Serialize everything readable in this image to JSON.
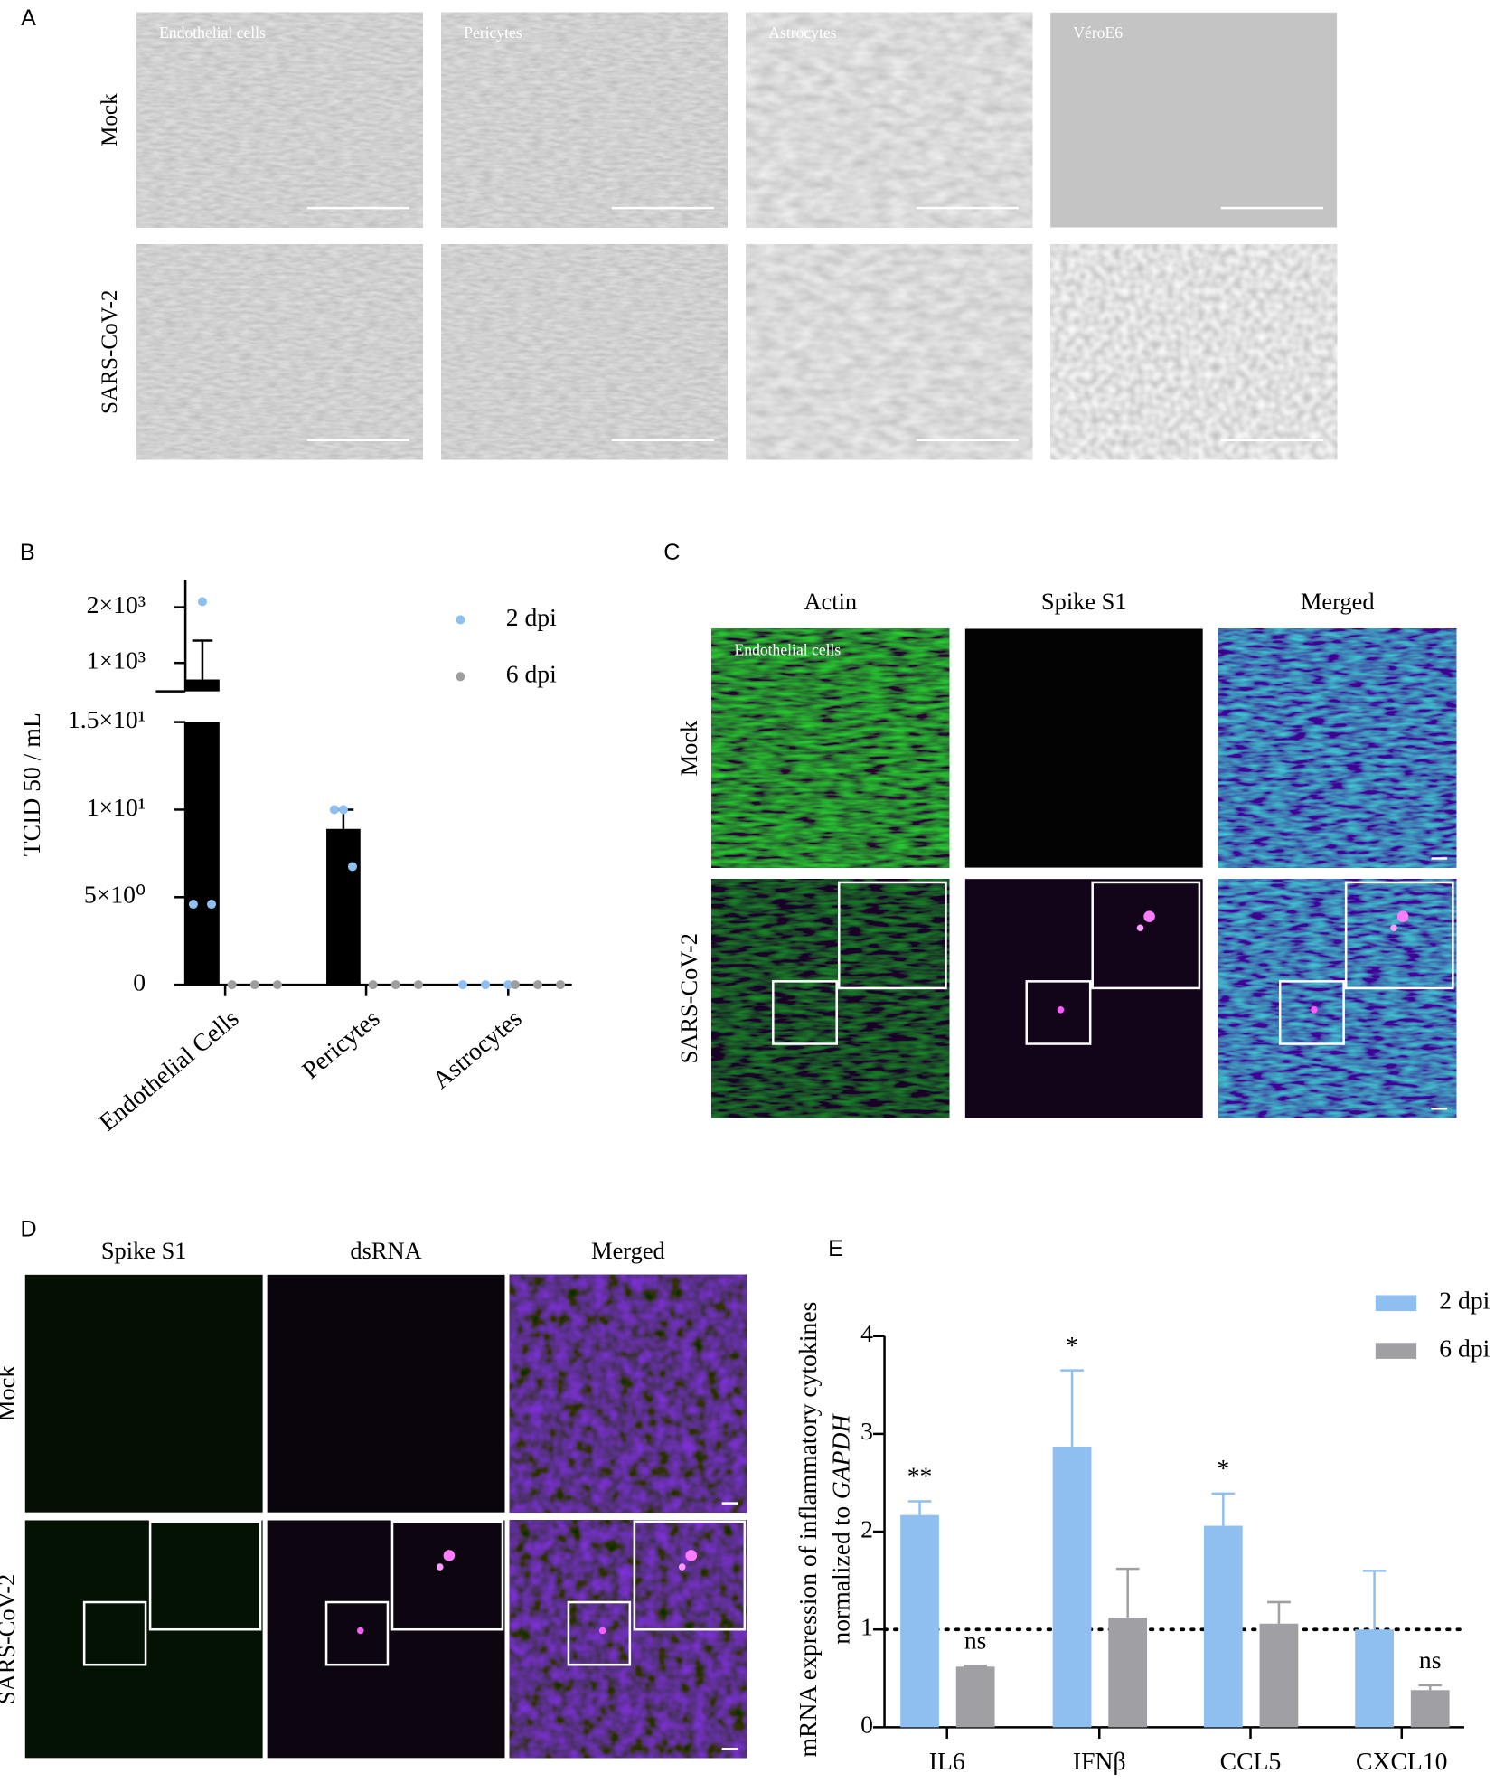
{
  "figure": {
    "panel_labels": [
      "A",
      "B",
      "C",
      "D",
      "E"
    ],
    "panel_a": {
      "rows": [
        "Mock",
        "SARS-CoV-2"
      ],
      "columns": [
        "Endothelial cells",
        "Pericytes",
        "Astrocytes",
        "VéroE6"
      ]
    },
    "panel_c": {
      "columns": [
        "Actin",
        "Spike S1",
        "Merged"
      ],
      "rows": [
        "Mock",
        "SARS-CoV-2"
      ],
      "image_label": "Endothelial cells"
    },
    "panel_d": {
      "columns": [
        "Spike S1",
        "dsRNA",
        "Merged"
      ],
      "rows": [
        "Mock",
        "SARS-CoV-2"
      ]
    }
  },
  "chart_data": [
    {
      "type": "bar",
      "ylabel": "TCID 50 / mL",
      "categories": [
        "Endothelial Cells",
        "Pericytes",
        "Astrocytes"
      ],
      "series": [
        {
          "name": "2 dpi",
          "color": "#000000",
          "point_color": "#8fbff0",
          "values": [
            703,
            8.9,
            0
          ],
          "errors": [
            698,
            1.1,
            0
          ],
          "points": [
            [
              2100,
              4.6,
              4.6
            ],
            [
              10,
              10,
              6.75
            ],
            [
              0,
              0,
              0
            ]
          ]
        },
        {
          "name": "6 dpi",
          "color": "#000000",
          "point_color": "#9e9e9e",
          "values": [
            0,
            0,
            0
          ],
          "errors": [
            0,
            0,
            0
          ],
          "points": [
            [
              0,
              0,
              0
            ],
            [
              0,
              0,
              0
            ],
            [
              0,
              0,
              0
            ]
          ]
        }
      ],
      "ylim": [
        0,
        15
      ],
      "ylim_upper": [
        490,
        2490
      ],
      "yticks": [
        0,
        {
          "value": 5,
          "label": "5×10⁰"
        },
        {
          "value": 10,
          "label": "1×10¹"
        },
        {
          "value": 15,
          "label": "1.5×10¹"
        },
        {
          "value": 1000,
          "label": "1×10³"
        },
        {
          "value": 2000,
          "label": "2×10³"
        }
      ],
      "axis_break": true,
      "legend": "upper right"
    },
    {
      "type": "bar",
      "ylabel": "mRNA expression of inflammatory cytokines",
      "ylabel2": "normalized to",
      "ylabel2_italic": "GAPDH",
      "categories": [
        "IL6",
        "IFNβ",
        "CCL5",
        "CXCL10"
      ],
      "series": [
        {
          "name": "2 dpi",
          "color": "#8fbff0",
          "values": [
            2.17,
            2.87,
            2.06,
            1.0
          ],
          "errors": [
            0.14,
            0.78,
            0.33,
            0.6
          ],
          "annotations": [
            "**",
            "*",
            "*",
            null
          ]
        },
        {
          "name": "6 dpi",
          "color": "#a0a0a4",
          "values": [
            0.62,
            1.12,
            1.06,
            0.38
          ],
          "errors": [
            0.01,
            0.5,
            0.22,
            0.05
          ],
          "annotations": [
            "ns",
            null,
            null,
            "ns"
          ]
        }
      ],
      "ylim": [
        0,
        4
      ],
      "yticks": [
        0,
        1,
        2,
        3,
        4
      ],
      "reference_line": 1,
      "legend": "upper right"
    }
  ]
}
